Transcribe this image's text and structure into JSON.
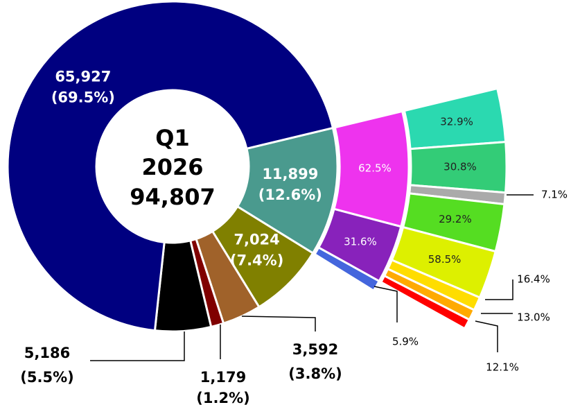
{
  "chart_data": {
    "type": "sunburst",
    "center_lines": [
      "Q1",
      "2026"
    ],
    "total": 94807,
    "total_label": "94,807",
    "segments": [
      {
        "value": 11899,
        "value_label": "11,899",
        "percent": 12.6,
        "percent_label": "(12.6%)",
        "color": "#4a9a8e",
        "children": [
          {
            "value": 62.5,
            "value_label": "62.5%",
            "color": "#ee33ee",
            "children": [
              {
                "value": 32.9,
                "value_label": "32.9%",
                "color": "#2bd9b0"
              },
              {
                "value": 30.8,
                "value_label": "30.8%",
                "color": "#33cc77"
              },
              {
                "value": 7.1,
                "value_label": "7.1%",
                "color": "#aaaaaa"
              },
              {
                "value": 29.2,
                "value_label": "29.2%",
                "color": "#55dd22"
              }
            ]
          },
          {
            "value": 31.6,
            "value_label": "31.6%",
            "color": "#8822bb",
            "children": [
              {
                "value": 58.5,
                "value_label": "58.5%",
                "color": "#ddf000"
              },
              {
                "value": 16.4,
                "value_label": "16.4%",
                "color": "#ffdd00"
              },
              {
                "value": 13.0,
                "value_label": "13.0%",
                "color": "#ffaa00"
              },
              {
                "value": 12.1,
                "value_label": "12.1%",
                "color": "#ff0000"
              }
            ]
          },
          {
            "value": 5.9,
            "value_label": "5.9%",
            "color": "#4466dd"
          }
        ]
      },
      {
        "value": 7024,
        "value_label": "7,024",
        "percent": 7.4,
        "percent_label": "(7.4%)",
        "color": "#808000"
      },
      {
        "value": 3592,
        "value_label": "3,592",
        "percent": 3.8,
        "percent_label": "(3.8%)",
        "color": "#a0622a"
      },
      {
        "value": 1179,
        "value_label": "1,179",
        "percent": 1.2,
        "percent_label": "(1.2%)",
        "color": "#800000"
      },
      {
        "value": 5186,
        "value_label": "5,186",
        "percent": 5.5,
        "percent_label": "(5.5%)",
        "color": "#000000"
      },
      {
        "value": 65927,
        "value_label": "65,927",
        "percent": 69.5,
        "percent_label": "(69.5%)",
        "color": "#000080"
      }
    ]
  }
}
